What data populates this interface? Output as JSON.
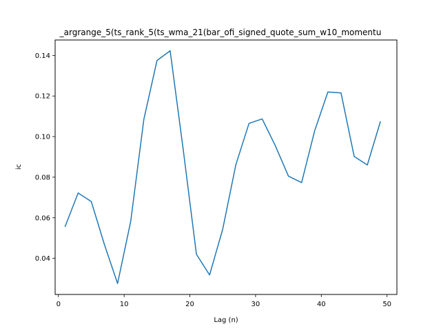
{
  "chart_data": {
    "type": "line",
    "title": "_argrange_5(ts_rank_5(ts_wma_21(bar_ofi_signed_quote_sum_w10_momentu",
    "xlabel": "Lag (n)",
    "ylabel": "ic",
    "xlim": [
      -0.5,
      51.5
    ],
    "ylim": [
      0.0222,
      0.1476
    ],
    "x_ticks": [
      0,
      10,
      20,
      30,
      40,
      50
    ],
    "y_ticks": [
      0.04,
      0.06,
      0.08,
      0.1,
      0.12,
      0.14
    ],
    "x_tick_labels": [
      "0",
      "10",
      "20",
      "30",
      "40",
      "50"
    ],
    "y_tick_labels": [
      "0.04",
      "0.06",
      "0.08",
      "0.10",
      "0.12",
      "0.14"
    ],
    "grid": false,
    "series": [
      {
        "color": "#1f77b4",
        "x": [
          1,
          3,
          5,
          7,
          9,
          11,
          13,
          15,
          17,
          19,
          21,
          23,
          25,
          27,
          29,
          31,
          33,
          35,
          37,
          39,
          41,
          43,
          45,
          47,
          49
        ],
        "y": [
          0.0555,
          0.0722,
          0.068,
          0.0468,
          0.0276,
          0.0582,
          0.1085,
          0.1375,
          0.1423,
          0.0933,
          0.042,
          0.0318,
          0.0544,
          0.0862,
          0.1065,
          0.1087,
          0.0955,
          0.0805,
          0.0773,
          0.103,
          0.122,
          0.1215,
          0.0902,
          0.086,
          0.1075
        ]
      }
    ]
  }
}
